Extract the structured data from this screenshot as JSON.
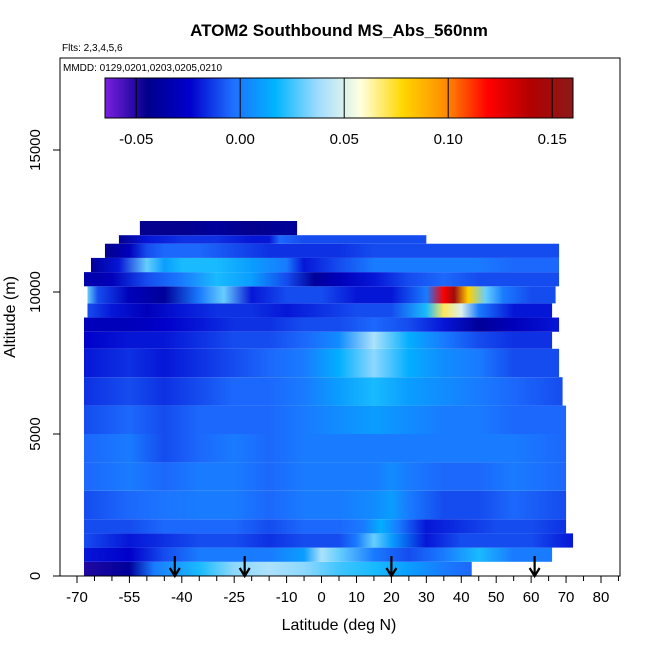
{
  "chart_data": {
    "type": "heatmap",
    "title": "ATOM2 Southbound MS_Abs_560nm",
    "subtitle_lines": [
      "Flts: 2,3,4,5,6",
      "MMDD: 0129,0201,0203,0205,0210"
    ],
    "xlabel": "Latitude (deg N)",
    "ylabel": "Altitude (m)",
    "xlim": [
      -70,
      85
    ],
    "ylim": [
      0,
      18000
    ],
    "x_ticks": [
      -70,
      -55,
      -40,
      -25,
      -10,
      0,
      10,
      20,
      30,
      40,
      50,
      60,
      70,
      80
    ],
    "y_ticks": [
      0,
      5000,
      10000,
      15000
    ],
    "colorbar": {
      "range": [
        -0.065,
        0.16
      ],
      "ticks": [
        -0.05,
        0.0,
        0.05,
        0.1,
        0.15
      ],
      "tick_labels": [
        "-0.05",
        "0.00",
        "0.05",
        "0.10",
        "0.15"
      ],
      "colors": [
        "#7b1fe0",
        "#00008b",
        "#0000cd",
        "#1e6fff",
        "#00b4ff",
        "#9fdcff",
        "#ffffe0",
        "#ffd700",
        "#ff8c00",
        "#ff0000",
        "#b20000",
        "#8b1a1a"
      ]
    },
    "arrow_latitudes": [
      -42,
      -22,
      20,
      61
    ],
    "rows": [
      {
        "alt_bottom": 0,
        "alt_top": 500,
        "lat_min": -68,
        "lat_max": 43,
        "values": [
          [
            -68,
            -0.05
          ],
          [
            -55,
            -0.04
          ],
          [
            -48,
            0.0
          ],
          [
            -35,
            0.02
          ],
          [
            -25,
            0.035
          ],
          [
            -15,
            0.04
          ],
          [
            -5,
            0.035
          ],
          [
            5,
            0.025
          ],
          [
            15,
            0.02
          ],
          [
            25,
            0.01
          ],
          [
            35,
            0.0
          ],
          [
            43,
            -0.005
          ]
        ]
      },
      {
        "alt_bottom": 500,
        "alt_top": 1000,
        "lat_min": -68,
        "lat_max": 66,
        "values": [
          [
            -68,
            -0.02
          ],
          [
            -55,
            -0.025
          ],
          [
            -45,
            -0.01
          ],
          [
            -35,
            0.0
          ],
          [
            -25,
            0.0
          ],
          [
            -15,
            0.0
          ],
          [
            -5,
            0.01
          ],
          [
            0,
            0.04
          ],
          [
            5,
            0.03
          ],
          [
            15,
            0.0
          ],
          [
            25,
            -0.01
          ],
          [
            35,
            0.0
          ],
          [
            45,
            0.02
          ],
          [
            55,
            0.0
          ],
          [
            66,
            0.0
          ]
        ]
      },
      {
        "alt_bottom": 1000,
        "alt_top": 1500,
        "lat_min": -68,
        "lat_max": 72,
        "values": [
          [
            -68,
            -0.01
          ],
          [
            -55,
            -0.02
          ],
          [
            -45,
            -0.015
          ],
          [
            -35,
            -0.01
          ],
          [
            -25,
            -0.01
          ],
          [
            -15,
            -0.015
          ],
          [
            -5,
            -0.01
          ],
          [
            5,
            -0.01
          ],
          [
            10,
            0.0
          ],
          [
            15,
            0.03
          ],
          [
            20,
            0.01
          ],
          [
            30,
            -0.02
          ],
          [
            40,
            -0.01
          ],
          [
            50,
            -0.01
          ],
          [
            60,
            -0.01
          ],
          [
            72,
            -0.02
          ]
        ]
      },
      {
        "alt_bottom": 1500,
        "alt_top": 2000,
        "lat_min": -68,
        "lat_max": 70,
        "values": [
          [
            -68,
            -0.01
          ],
          [
            -55,
            -0.01
          ],
          [
            -45,
            -0.005
          ],
          [
            -35,
            -0.005
          ],
          [
            -25,
            -0.005
          ],
          [
            -15,
            -0.01
          ],
          [
            -5,
            -0.005
          ],
          [
            5,
            -0.005
          ],
          [
            12,
            0.0
          ],
          [
            17,
            0.015
          ],
          [
            22,
            0.0
          ],
          [
            30,
            -0.02
          ],
          [
            40,
            -0.015
          ],
          [
            50,
            -0.01
          ],
          [
            60,
            -0.01
          ],
          [
            70,
            -0.015
          ]
        ]
      },
      {
        "alt_bottom": 2000,
        "alt_top": 3000,
        "lat_min": -68,
        "lat_max": 70,
        "values": [
          [
            -68,
            -0.01
          ],
          [
            -55,
            -0.005
          ],
          [
            -45,
            -0.002
          ],
          [
            -35,
            0.0
          ],
          [
            -25,
            0.0
          ],
          [
            -15,
            -0.005
          ],
          [
            -5,
            0.0
          ],
          [
            5,
            0.0
          ],
          [
            15,
            0.005
          ],
          [
            20,
            0.01
          ],
          [
            25,
            0.0
          ],
          [
            35,
            -0.01
          ],
          [
            45,
            -0.01
          ],
          [
            55,
            -0.005
          ],
          [
            70,
            -0.01
          ]
        ]
      },
      {
        "alt_bottom": 3000,
        "alt_top": 4000,
        "lat_min": -68,
        "lat_max": 70,
        "values": [
          [
            -68,
            -0.005
          ],
          [
            -55,
            0.0
          ],
          [
            -45,
            -0.005
          ],
          [
            -35,
            0.0
          ],
          [
            -25,
            0.0
          ],
          [
            -15,
            -0.005
          ],
          [
            -5,
            0.0
          ],
          [
            5,
            0.0
          ],
          [
            15,
            0.0
          ],
          [
            20,
            0.005
          ],
          [
            25,
            0.0
          ],
          [
            35,
            -0.005
          ],
          [
            45,
            -0.005
          ],
          [
            55,
            0.0
          ],
          [
            70,
            -0.005
          ]
        ]
      },
      {
        "alt_bottom": 4000,
        "alt_top": 5000,
        "lat_min": -68,
        "lat_max": 70,
        "values": [
          [
            -68,
            -0.005
          ],
          [
            -55,
            0.0
          ],
          [
            -45,
            -0.01
          ],
          [
            -35,
            -0.005
          ],
          [
            -25,
            0.0
          ],
          [
            -15,
            -0.005
          ],
          [
            -5,
            0.0
          ],
          [
            5,
            0.0
          ],
          [
            15,
            0.0
          ],
          [
            25,
            0.0
          ],
          [
            35,
            0.0
          ],
          [
            45,
            0.0
          ],
          [
            55,
            0.0
          ],
          [
            70,
            -0.005
          ]
        ]
      },
      {
        "alt_bottom": 5000,
        "alt_top": 6000,
        "lat_min": -68,
        "lat_max": 70,
        "values": [
          [
            -68,
            -0.01
          ],
          [
            -55,
            -0.005
          ],
          [
            -45,
            -0.01
          ],
          [
            -35,
            -0.005
          ],
          [
            -25,
            -0.005
          ],
          [
            -15,
            -0.005
          ],
          [
            -5,
            0.0
          ],
          [
            5,
            0.005
          ],
          [
            15,
            0.01
          ],
          [
            25,
            0.005
          ],
          [
            35,
            0.0
          ],
          [
            45,
            0.0
          ],
          [
            55,
            -0.005
          ],
          [
            70,
            -0.005
          ]
        ]
      },
      {
        "alt_bottom": 6000,
        "alt_top": 7000,
        "lat_min": -68,
        "lat_max": 69,
        "values": [
          [
            -68,
            -0.015
          ],
          [
            -55,
            -0.01
          ],
          [
            -45,
            -0.015
          ],
          [
            -35,
            -0.01
          ],
          [
            -25,
            -0.005
          ],
          [
            -15,
            -0.005
          ],
          [
            -5,
            0.0
          ],
          [
            5,
            0.01
          ],
          [
            15,
            0.02
          ],
          [
            25,
            0.01
          ],
          [
            35,
            0.005
          ],
          [
            45,
            0.0
          ],
          [
            55,
            -0.005
          ],
          [
            69,
            -0.01
          ]
        ]
      },
      {
        "alt_bottom": 7000,
        "alt_top": 8000,
        "lat_min": -68,
        "lat_max": 68,
        "values": [
          [
            -68,
            -0.02
          ],
          [
            -55,
            -0.015
          ],
          [
            -45,
            -0.02
          ],
          [
            -35,
            -0.015
          ],
          [
            -25,
            -0.01
          ],
          [
            -15,
            -0.005
          ],
          [
            -5,
            0.0
          ],
          [
            5,
            0.015
          ],
          [
            15,
            0.035
          ],
          [
            25,
            0.015
          ],
          [
            35,
            0.005
          ],
          [
            45,
            0.0
          ],
          [
            55,
            -0.01
          ],
          [
            68,
            -0.01
          ]
        ]
      },
      {
        "alt_bottom": 8000,
        "alt_top": 8600,
        "lat_min": -68,
        "lat_max": 66,
        "values": [
          [
            -68,
            -0.025
          ],
          [
            -55,
            -0.02
          ],
          [
            -45,
            -0.02
          ],
          [
            -35,
            -0.015
          ],
          [
            -25,
            -0.01
          ],
          [
            -15,
            -0.01
          ],
          [
            -5,
            -0.005
          ],
          [
            5,
            0.005
          ],
          [
            15,
            0.04
          ],
          [
            25,
            0.015
          ],
          [
            35,
            0.0
          ],
          [
            45,
            -0.01
          ],
          [
            55,
            -0.015
          ],
          [
            66,
            -0.015
          ]
        ]
      },
      {
        "alt_bottom": 8600,
        "alt_top": 9100,
        "lat_min": -68,
        "lat_max": 68,
        "values": [
          [
            -68,
            -0.03
          ],
          [
            -55,
            -0.03
          ],
          [
            -45,
            -0.025
          ],
          [
            -35,
            -0.02
          ],
          [
            -25,
            -0.015
          ],
          [
            -15,
            -0.015
          ],
          [
            -5,
            -0.01
          ],
          [
            5,
            -0.01
          ],
          [
            15,
            -0.005
          ],
          [
            25,
            -0.01
          ],
          [
            35,
            -0.02
          ],
          [
            45,
            -0.04
          ],
          [
            55,
            -0.03
          ],
          [
            68,
            -0.02
          ]
        ]
      },
      {
        "alt_bottom": 9100,
        "alt_top": 9600,
        "lat_min": -67,
        "lat_max": 66,
        "values": [
          [
            -67,
            -0.01
          ],
          [
            -60,
            -0.02
          ],
          [
            -50,
            -0.03
          ],
          [
            -40,
            -0.02
          ],
          [
            -30,
            -0.015
          ],
          [
            -20,
            -0.015
          ],
          [
            -10,
            -0.02
          ],
          [
            0,
            -0.015
          ],
          [
            10,
            -0.01
          ],
          [
            20,
            -0.01
          ],
          [
            30,
            0.02
          ],
          [
            35,
            0.07
          ],
          [
            40,
            0.05
          ],
          [
            45,
            0.0
          ],
          [
            55,
            -0.02
          ],
          [
            66,
            -0.02
          ]
        ]
      },
      {
        "alt_bottom": 9600,
        "alt_top": 10200,
        "lat_min": -67,
        "lat_max": 67,
        "values": [
          [
            -67,
            0.03
          ],
          [
            -64,
            -0.01
          ],
          [
            -55,
            -0.03
          ],
          [
            -45,
            -0.04
          ],
          [
            -35,
            0.0
          ],
          [
            -28,
            0.03
          ],
          [
            -20,
            -0.02
          ],
          [
            -10,
            -0.01
          ],
          [
            0,
            -0.01
          ],
          [
            10,
            -0.02
          ],
          [
            20,
            -0.02
          ],
          [
            30,
            0.0
          ],
          [
            35,
            0.12
          ],
          [
            38,
            0.15
          ],
          [
            42,
            0.08
          ],
          [
            47,
            0.03
          ],
          [
            52,
            0.0
          ],
          [
            60,
            -0.01
          ],
          [
            67,
            -0.01
          ]
        ]
      },
      {
        "alt_bottom": 10200,
        "alt_top": 10700,
        "lat_min": -68,
        "lat_max": 68,
        "values": [
          [
            -68,
            -0.035
          ],
          [
            -60,
            -0.03
          ],
          [
            -50,
            -0.01
          ],
          [
            -40,
            0.0
          ],
          [
            -30,
            0.02
          ],
          [
            -20,
            0.01
          ],
          [
            -10,
            -0.01
          ],
          [
            -2,
            -0.04
          ],
          [
            5,
            -0.03
          ],
          [
            15,
            -0.02
          ],
          [
            25,
            -0.01
          ],
          [
            35,
            -0.005
          ],
          [
            45,
            -0.01
          ],
          [
            55,
            -0.01
          ],
          [
            68,
            -0.01
          ]
        ]
      },
      {
        "alt_bottom": 10700,
        "alt_top": 11200,
        "lat_min": -66,
        "lat_max": 68,
        "values": [
          [
            -66,
            -0.04
          ],
          [
            -58,
            -0.02
          ],
          [
            -50,
            0.03
          ],
          [
            -45,
            0.01
          ],
          [
            -40,
            0.02
          ],
          [
            -30,
            0.02
          ],
          [
            -20,
            0.01
          ],
          [
            -10,
            0.0
          ],
          [
            -5,
            -0.02
          ],
          [
            5,
            -0.01
          ],
          [
            15,
            0.0
          ],
          [
            25,
            0.0
          ],
          [
            35,
            0.0
          ],
          [
            45,
            0.0
          ],
          [
            55,
            -0.005
          ],
          [
            68,
            -0.005
          ]
        ]
      },
      {
        "alt_bottom": 11200,
        "alt_top": 11700,
        "lat_min": -62,
        "lat_max": 68,
        "values": [
          [
            -62,
            -0.045
          ],
          [
            -55,
            -0.03
          ],
          [
            -50,
            -0.01
          ],
          [
            -45,
            -0.005
          ],
          [
            -35,
            -0.005
          ],
          [
            -25,
            -0.01
          ],
          [
            -15,
            -0.015
          ],
          [
            -5,
            -0.015
          ],
          [
            5,
            -0.015
          ],
          [
            15,
            -0.01
          ],
          [
            25,
            -0.01
          ],
          [
            35,
            -0.01
          ],
          [
            45,
            -0.01
          ],
          [
            55,
            -0.01
          ],
          [
            68,
            -0.01
          ]
        ]
      },
      {
        "alt_bottom": 11700,
        "alt_top": 12000,
        "lat_min": -58,
        "lat_max": 30,
        "values": [
          [
            -58,
            -0.045
          ],
          [
            -50,
            -0.02
          ],
          [
            -40,
            -0.015
          ],
          [
            -30,
            -0.015
          ],
          [
            -20,
            -0.02
          ],
          [
            -15,
            -0.02
          ],
          [
            -12,
            -0.005
          ],
          [
            -5,
            -0.01
          ],
          [
            5,
            -0.01
          ],
          [
            15,
            -0.01
          ],
          [
            30,
            -0.01
          ]
        ]
      },
      {
        "alt_bottom": 12000,
        "alt_top": 12500,
        "lat_min": -52,
        "lat_max": -7,
        "values": [
          [
            -52,
            -0.045
          ],
          [
            -40,
            -0.045
          ],
          [
            -30,
            -0.04
          ],
          [
            -20,
            -0.045
          ],
          [
            -7,
            -0.04
          ]
        ]
      }
    ]
  }
}
